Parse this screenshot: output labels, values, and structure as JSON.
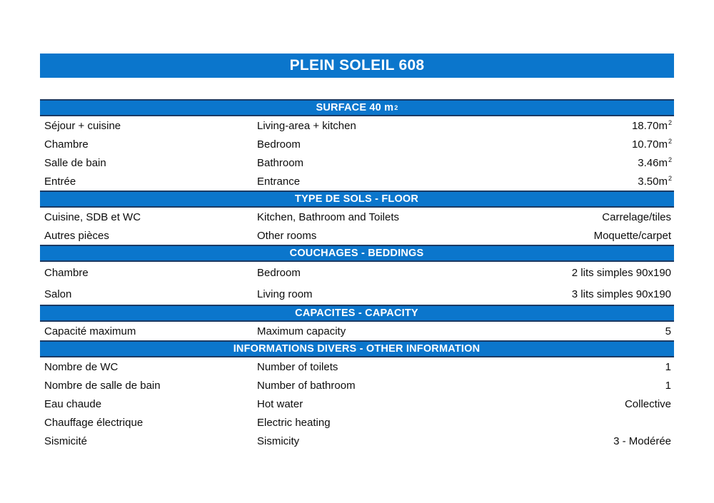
{
  "title": "PLEIN SOLEIL 608",
  "colors": {
    "accent": "#0b76cc",
    "bar_border": "#1c3a63",
    "text": "#0d0d0d",
    "background": "#ffffff",
    "header_text": "#ffffff"
  },
  "sections": [
    {
      "header": "SURFACE 40 m",
      "header_sup": "2",
      "rows": [
        {
          "fr": "Séjour + cuisine",
          "en": "Living-area + kitchen",
          "value": "18.70m",
          "value_sup": "2"
        },
        {
          "fr": "Chambre",
          "en": "Bedroom",
          "value": "10.70m",
          "value_sup": "2"
        },
        {
          "fr": "Salle de bain",
          "en": "Bathroom",
          "value": "3.46m",
          "value_sup": "2"
        },
        {
          "fr": "Entrée",
          "en": "Entrance",
          "value": "3.50m",
          "value_sup": "2"
        }
      ]
    },
    {
      "header": "TYPE DE SOLS - FLOOR",
      "header_sup": "",
      "rows": [
        {
          "fr": "Cuisine, SDB et WC",
          "en": "Kitchen, Bathroom and Toilets",
          "value": "Carrelage/tiles",
          "value_sup": ""
        },
        {
          "fr": "Autres pièces",
          "en": "Other rooms",
          "value": "Moquette/carpet",
          "value_sup": ""
        }
      ]
    },
    {
      "header": "COUCHAGES - BEDDINGS",
      "header_sup": "",
      "rows": [
        {
          "fr": "Chambre",
          "en": "Bedroom",
          "value": "2 lits simples 90x190",
          "value_sup": ""
        },
        {
          "fr": "Salon",
          "en": "Living room",
          "value": "3 lits simples 90x190",
          "value_sup": ""
        }
      ]
    },
    {
      "header": "CAPACITES - CAPACITY",
      "header_sup": "",
      "rows": [
        {
          "fr": "Capacité maximum",
          "en": "Maximum capacity",
          "value": "5",
          "value_sup": ""
        }
      ]
    },
    {
      "header": "INFORMATIONS DIVERS - OTHER INFORMATION",
      "header_sup": "",
      "rows": [
        {
          "fr": "Nombre de WC",
          "en": "Number of toilets",
          "value": "1",
          "value_sup": ""
        },
        {
          "fr": "Nombre de salle de bain",
          "en": "Number of bathroom",
          "value": "1",
          "value_sup": ""
        },
        {
          "fr": "Eau chaude",
          "en": "Hot water",
          "value": "Collective",
          "value_sup": ""
        },
        {
          "fr": "Chauffage électrique",
          "en": "Electric heating",
          "value": "",
          "value_sup": ""
        },
        {
          "fr": "Sismicité",
          "en": "Sismicity",
          "value": "3 - Modérée",
          "value_sup": ""
        }
      ]
    }
  ]
}
